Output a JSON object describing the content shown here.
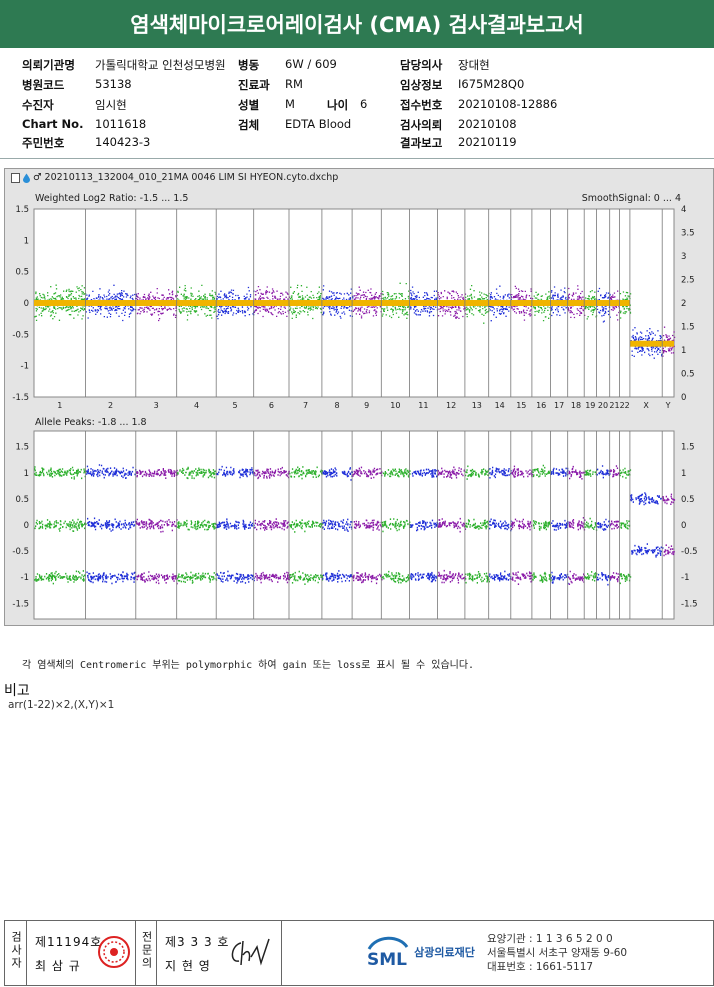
{
  "title": "염색체마이크로어레이검사 (CMA) 검사결과보고서",
  "info": {
    "col1": [
      {
        "label": "의뢰기관명",
        "value": "가톨릭대학교 인천성모병원"
      },
      {
        "label": "병원코드",
        "value": "53138"
      },
      {
        "label": "수진자",
        "value": "임시현"
      },
      {
        "label": "Chart No.",
        "value": "1011618"
      },
      {
        "label": "주민번호",
        "value": "140423-3"
      }
    ],
    "col2": [
      {
        "label": "병동",
        "value": "6W / 609"
      },
      {
        "label": "진료과",
        "value": "RM"
      },
      {
        "label": "성별",
        "value": "M"
      },
      {
        "label": "검체",
        "value": "EDTA Blood"
      }
    ],
    "age": {
      "label": "나이",
      "value": "6"
    },
    "col3": [
      {
        "label": "담당의사",
        "value": "장대현"
      },
      {
        "label": "임상정보",
        "value": "I675M28Q0"
      },
      {
        "label": "접수번호",
        "value": "20210108-12886"
      },
      {
        "label": "검사의뢰",
        "value": "20210108"
      },
      {
        "label": "결과보고",
        "value": "20210119"
      }
    ]
  },
  "plot": {
    "filename": "20210113_132004_010_21MA 0046 LIM SI HYEON.cyto.dxchp",
    "top_label": "Weighted Log2 Ratio: -1.5 ... 1.5",
    "top_right_label": "SmoothSignal: 0 ... 4",
    "bottom_label": "Allele Peaks: -1.8 ... 1.8",
    "top_left_ticks": [
      "1.5",
      "1",
      "0.5",
      "0",
      "-0.5",
      "-1",
      "-1.5"
    ],
    "top_right_ticks": [
      "4",
      "3.5",
      "3",
      "2.5",
      "2",
      "1.5",
      "1",
      "0.5",
      "0"
    ],
    "bottom_ticks": [
      "1.5",
      "1",
      "0.5",
      "0",
      "-0.5",
      "-1",
      "-1.5"
    ],
    "chromosomes": [
      "1",
      "2",
      "3",
      "4",
      "5",
      "6",
      "7",
      "8",
      "9",
      "10",
      "11",
      "12",
      "13",
      "14",
      "15",
      "16",
      "17",
      "18",
      "19",
      "20",
      "21",
      "22",
      "X",
      "Y"
    ]
  },
  "note": "각 염색체의 Centromeric 부위는 polymorphic 하여 gain 또는 loss로 표시 될 수 있습니다.",
  "remarks_heading": "비고",
  "remarks": "arr(1-22)×2,(X,Y)×1",
  "footer": {
    "checker_label": "검사자",
    "checker_no": "제11194호",
    "checker_name": "최 삼 규",
    "specialist_label": "전문의",
    "specialist_no": "제3 3 3 호",
    "specialist_name": "지 현 영",
    "org_logo": "SML",
    "org_name": "삼광의료재단",
    "contact": [
      "요양기관 : 1 1 3 6 5 2 0 0",
      "서울특별시 서초구 양재동 9-60",
      "대표번호 : 1661-5117"
    ]
  },
  "colors": {
    "green": "#2db02d",
    "blue": "#1f2fd8",
    "purple": "#8a1aa8",
    "orange": "#f0b400",
    "header": "#2e7a52"
  }
}
